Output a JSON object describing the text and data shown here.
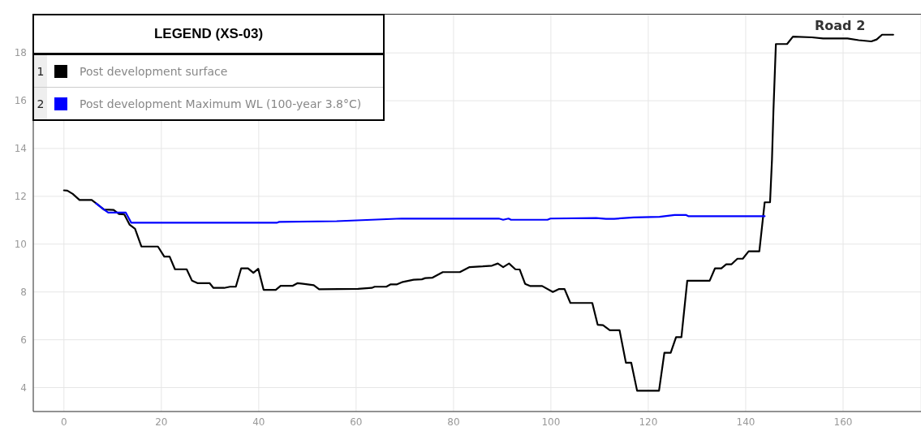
{
  "chart_data": {
    "type": "line",
    "legend_title": "LEGEND (XS-03)",
    "legend": "top left",
    "grid": true,
    "marker": "none",
    "line_style": "solid",
    "xlim": [
      -6.3,
      176
    ],
    "xticks": [
      0,
      20,
      40,
      60,
      80,
      100,
      120,
      140,
      160
    ],
    "ylim": [
      3,
      19.6
    ],
    "yticks": [
      4,
      6,
      8,
      10,
      12,
      14,
      16,
      18
    ],
    "annotations": [
      "Road 2",
      "1",
      "2"
    ],
    "series": [
      {
        "name": "Post development surface",
        "color": "#000000",
        "x": [
          0,
          0.7,
          1.8,
          3.2,
          5.7,
          6.8,
          8.2,
          10.2,
          11.3,
          12.4,
          13.5,
          14.6,
          15.9,
          19.3,
          20.6,
          21.7,
          22.8,
          25.2,
          26.3,
          27.4,
          29.9,
          30.7,
          32.9,
          34.1,
          35.3,
          36.4,
          37.8,
          38.9,
          39.9,
          41,
          43.5,
          44.5,
          47,
          48,
          49.1,
          51.3,
          52.4,
          60.4,
          63.2,
          63.8,
          66.2,
          67.1,
          68.4,
          69.6,
          71.8,
          73.5,
          74.2,
          75.7,
          77.8,
          81.3,
          83.3,
          86,
          87.9,
          89.1,
          90.2,
          91.4,
          92.7,
          93.6,
          94.7,
          95.7,
          98.2,
          100.4,
          101.6,
          102.8,
          104,
          108.5,
          109.6,
          110.7,
          112.1,
          114.1,
          115.4,
          116.5,
          117.7,
          122.2,
          123.3,
          124.6,
          125.7,
          126.8,
          128,
          132.6,
          133.7,
          135,
          136,
          137.1,
          138.3,
          139.4,
          140.6,
          142.8,
          143.9,
          145,
          145.4,
          145.7,
          146.2,
          148.5,
          149.7,
          153.6,
          155.9,
          160.9,
          163.2,
          165.8,
          166.9,
          168,
          170.3
        ],
        "values": [
          12.25,
          12.24,
          12.1,
          11.85,
          11.85,
          11.68,
          11.45,
          11.43,
          11.26,
          11.24,
          10.81,
          10.64,
          9.9,
          9.9,
          9.48,
          9.48,
          8.95,
          8.95,
          8.47,
          8.37,
          8.37,
          8.17,
          8.17,
          8.22,
          8.22,
          8.99,
          8.99,
          8.8,
          8.97,
          8.09,
          8.09,
          8.26,
          8.26,
          8.37,
          8.34,
          8.28,
          8.11,
          8.13,
          8.17,
          8.22,
          8.22,
          8.32,
          8.32,
          8.42,
          8.51,
          8.53,
          8.58,
          8.6,
          8.83,
          8.83,
          9.04,
          9.07,
          9.1,
          9.19,
          9.04,
          9.19,
          8.95,
          8.94,
          8.34,
          8.25,
          8.25,
          8.0,
          8.12,
          8.12,
          7.54,
          7.54,
          6.63,
          6.61,
          6.4,
          6.4,
          5.04,
          5.04,
          3.87,
          3.87,
          5.46,
          5.46,
          6.11,
          6.11,
          8.47,
          8.47,
          8.99,
          8.99,
          9.16,
          9.16,
          9.39,
          9.39,
          9.7,
          9.7,
          11.75,
          11.75,
          13.54,
          15.6,
          18.37,
          18.37,
          18.68,
          18.65,
          18.6,
          18.6,
          18.53,
          18.48,
          18.56,
          18.76,
          18.76
        ]
      },
      {
        "name": "Post development Maximum WL (100-year 3.8°C)",
        "color": "#0000ff",
        "x": [
          6.6,
          8.2,
          9.1,
          12.7,
          13.8,
          43.8,
          44.2,
          56,
          63.2,
          69.3,
          89.3,
          90.2,
          91.3,
          91.8,
          99.3,
          99.9,
          109.3,
          111.3,
          113,
          117,
          122.3,
          125.4,
          127.7,
          128.2,
          143.9
        ],
        "values": [
          11.7,
          11.45,
          11.32,
          11.32,
          10.9,
          10.9,
          10.93,
          10.96,
          11.02,
          11.07,
          11.07,
          11.02,
          11.07,
          11.02,
          11.02,
          11.07,
          11.09,
          11.06,
          11.06,
          11.12,
          11.14,
          11.22,
          11.22,
          11.17,
          11.17
        ]
      }
    ]
  }
}
